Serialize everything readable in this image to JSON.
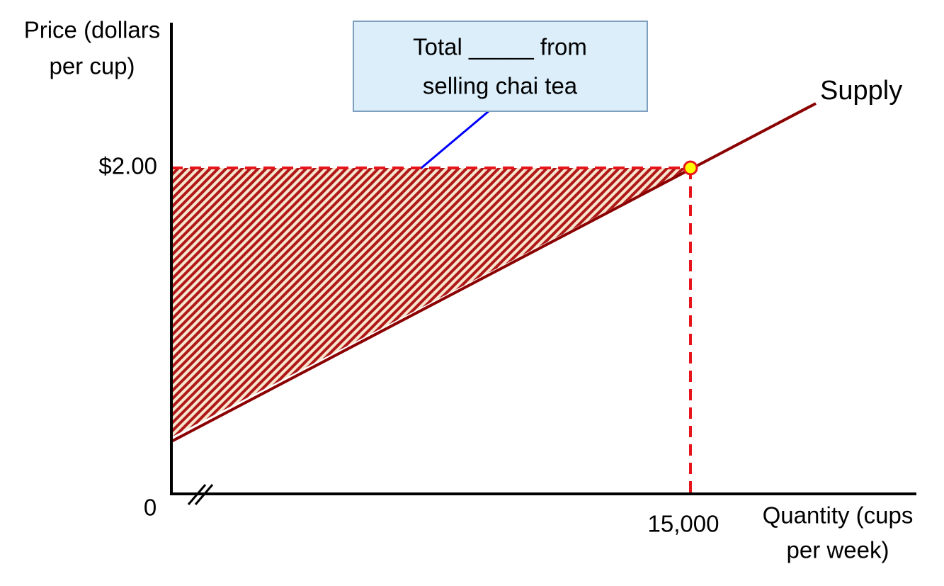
{
  "y_axis": {
    "label_lines": [
      "Price (dollars",
      "per cup)"
    ],
    "tick_label": "$2.00",
    "origin_label": "0"
  },
  "x_axis": {
    "label_lines": [
      "Quantity (cups",
      "per week)"
    ],
    "tick_label": "15,000"
  },
  "curve": {
    "label": "Supply"
  },
  "callout": {
    "lines": [
      "Total _____ from",
      "selling chai tea"
    ]
  }
}
